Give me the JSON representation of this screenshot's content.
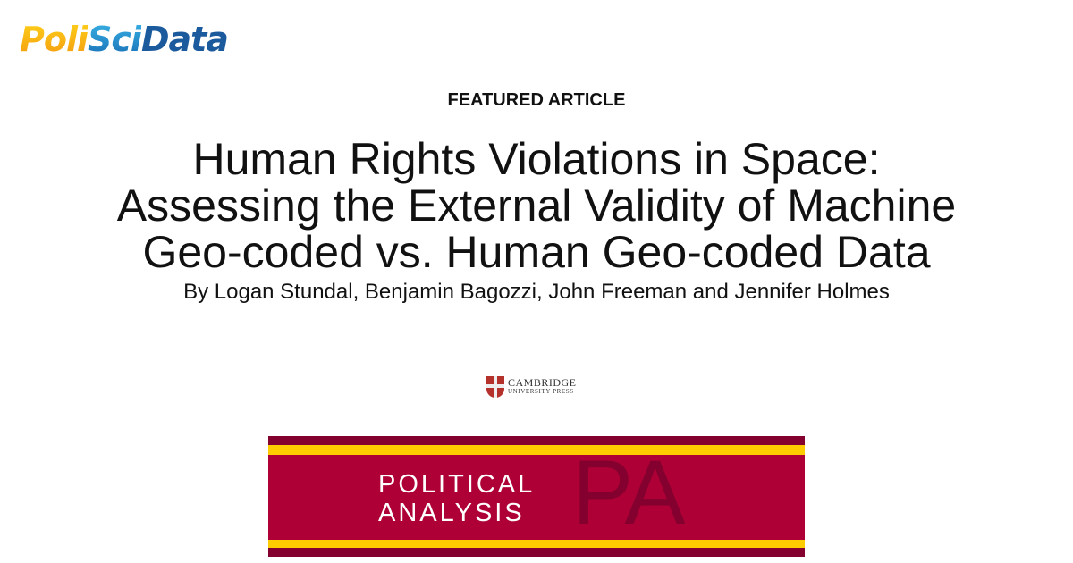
{
  "header": {
    "logo_text": [
      "Poli",
      "Sci",
      "Data"
    ]
  },
  "article": {
    "label": "FEATURED ARTICLE",
    "title_lines": [
      "Human Rights Violations in Space:",
      "Assessing the External Validity of Machine",
      "Geo-coded vs. Human Geo-coded Data"
    ],
    "authors": "By Logan Stundal, Benjamin Bagozzi, John Freeman and Jennifer Holmes"
  },
  "publisher": {
    "line1": "CAMBRIDGE",
    "line2": "UNIVERSITY PRESS"
  },
  "journal": {
    "line1": "POLITICAL",
    "line2": "ANALYSIS",
    "mark": "PA"
  },
  "colors": {
    "banner_red": "#ae0036",
    "banner_dark": "#84002e",
    "banner_yellow": "#ffcc00",
    "logo_orange": "#f39a10",
    "logo_blue": "#1b5a9c"
  }
}
